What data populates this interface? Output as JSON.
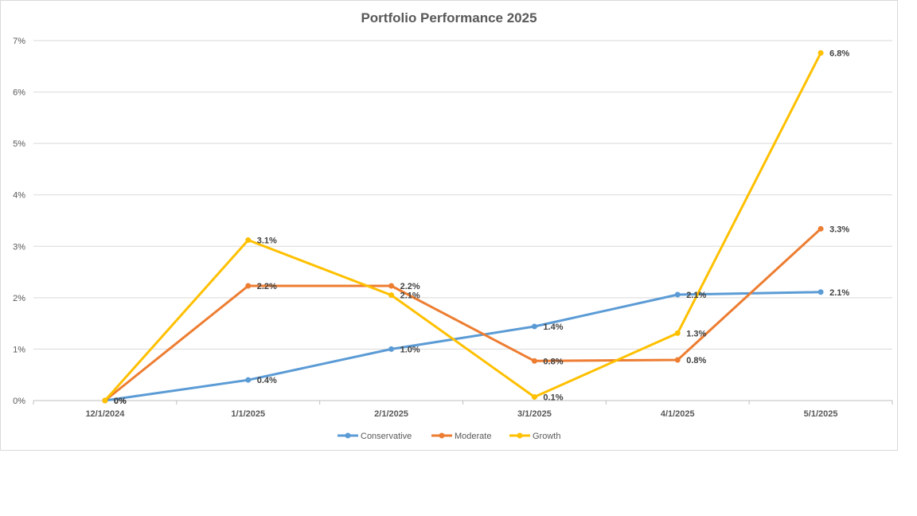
{
  "chart_data": {
    "type": "line",
    "title": "Portfolio Performance 2025",
    "xlabel": "",
    "ylabel": "",
    "categories": [
      "12/1/2024",
      "1/1/2025",
      "2/1/2025",
      "3/1/2025",
      "4/1/2025",
      "5/1/2025"
    ],
    "ylim": [
      0,
      7
    ],
    "yticks": [
      "0%",
      "1%",
      "2%",
      "3%",
      "4%",
      "5%",
      "6%",
      "7%"
    ],
    "grid": true,
    "legend": "bottom",
    "series": [
      {
        "name": "Conservative",
        "color": "#5B9BD5",
        "values": [
          0,
          0.4,
          1.0,
          1.44,
          2.06,
          2.11
        ],
        "labels": [
          "0%",
          "0.4%",
          "1.0%",
          "1.4%",
          "2.1%",
          "2.1%"
        ]
      },
      {
        "name": "Moderate",
        "color": "#ED7D31",
        "values": [
          0,
          2.23,
          2.23,
          0.77,
          0.79,
          3.34
        ],
        "labels": [
          "0%",
          "2.2%",
          "2.2%",
          "0.8%",
          "0.8%",
          "3.3%"
        ]
      },
      {
        "name": "Growth",
        "color": "#FFC000",
        "values": [
          0,
          3.12,
          2.05,
          0.07,
          1.31,
          6.76
        ],
        "labels": [
          "0%",
          "3.1%",
          "2.1%",
          "0.1%",
          "1.3%",
          "6.8%"
        ]
      }
    ]
  }
}
